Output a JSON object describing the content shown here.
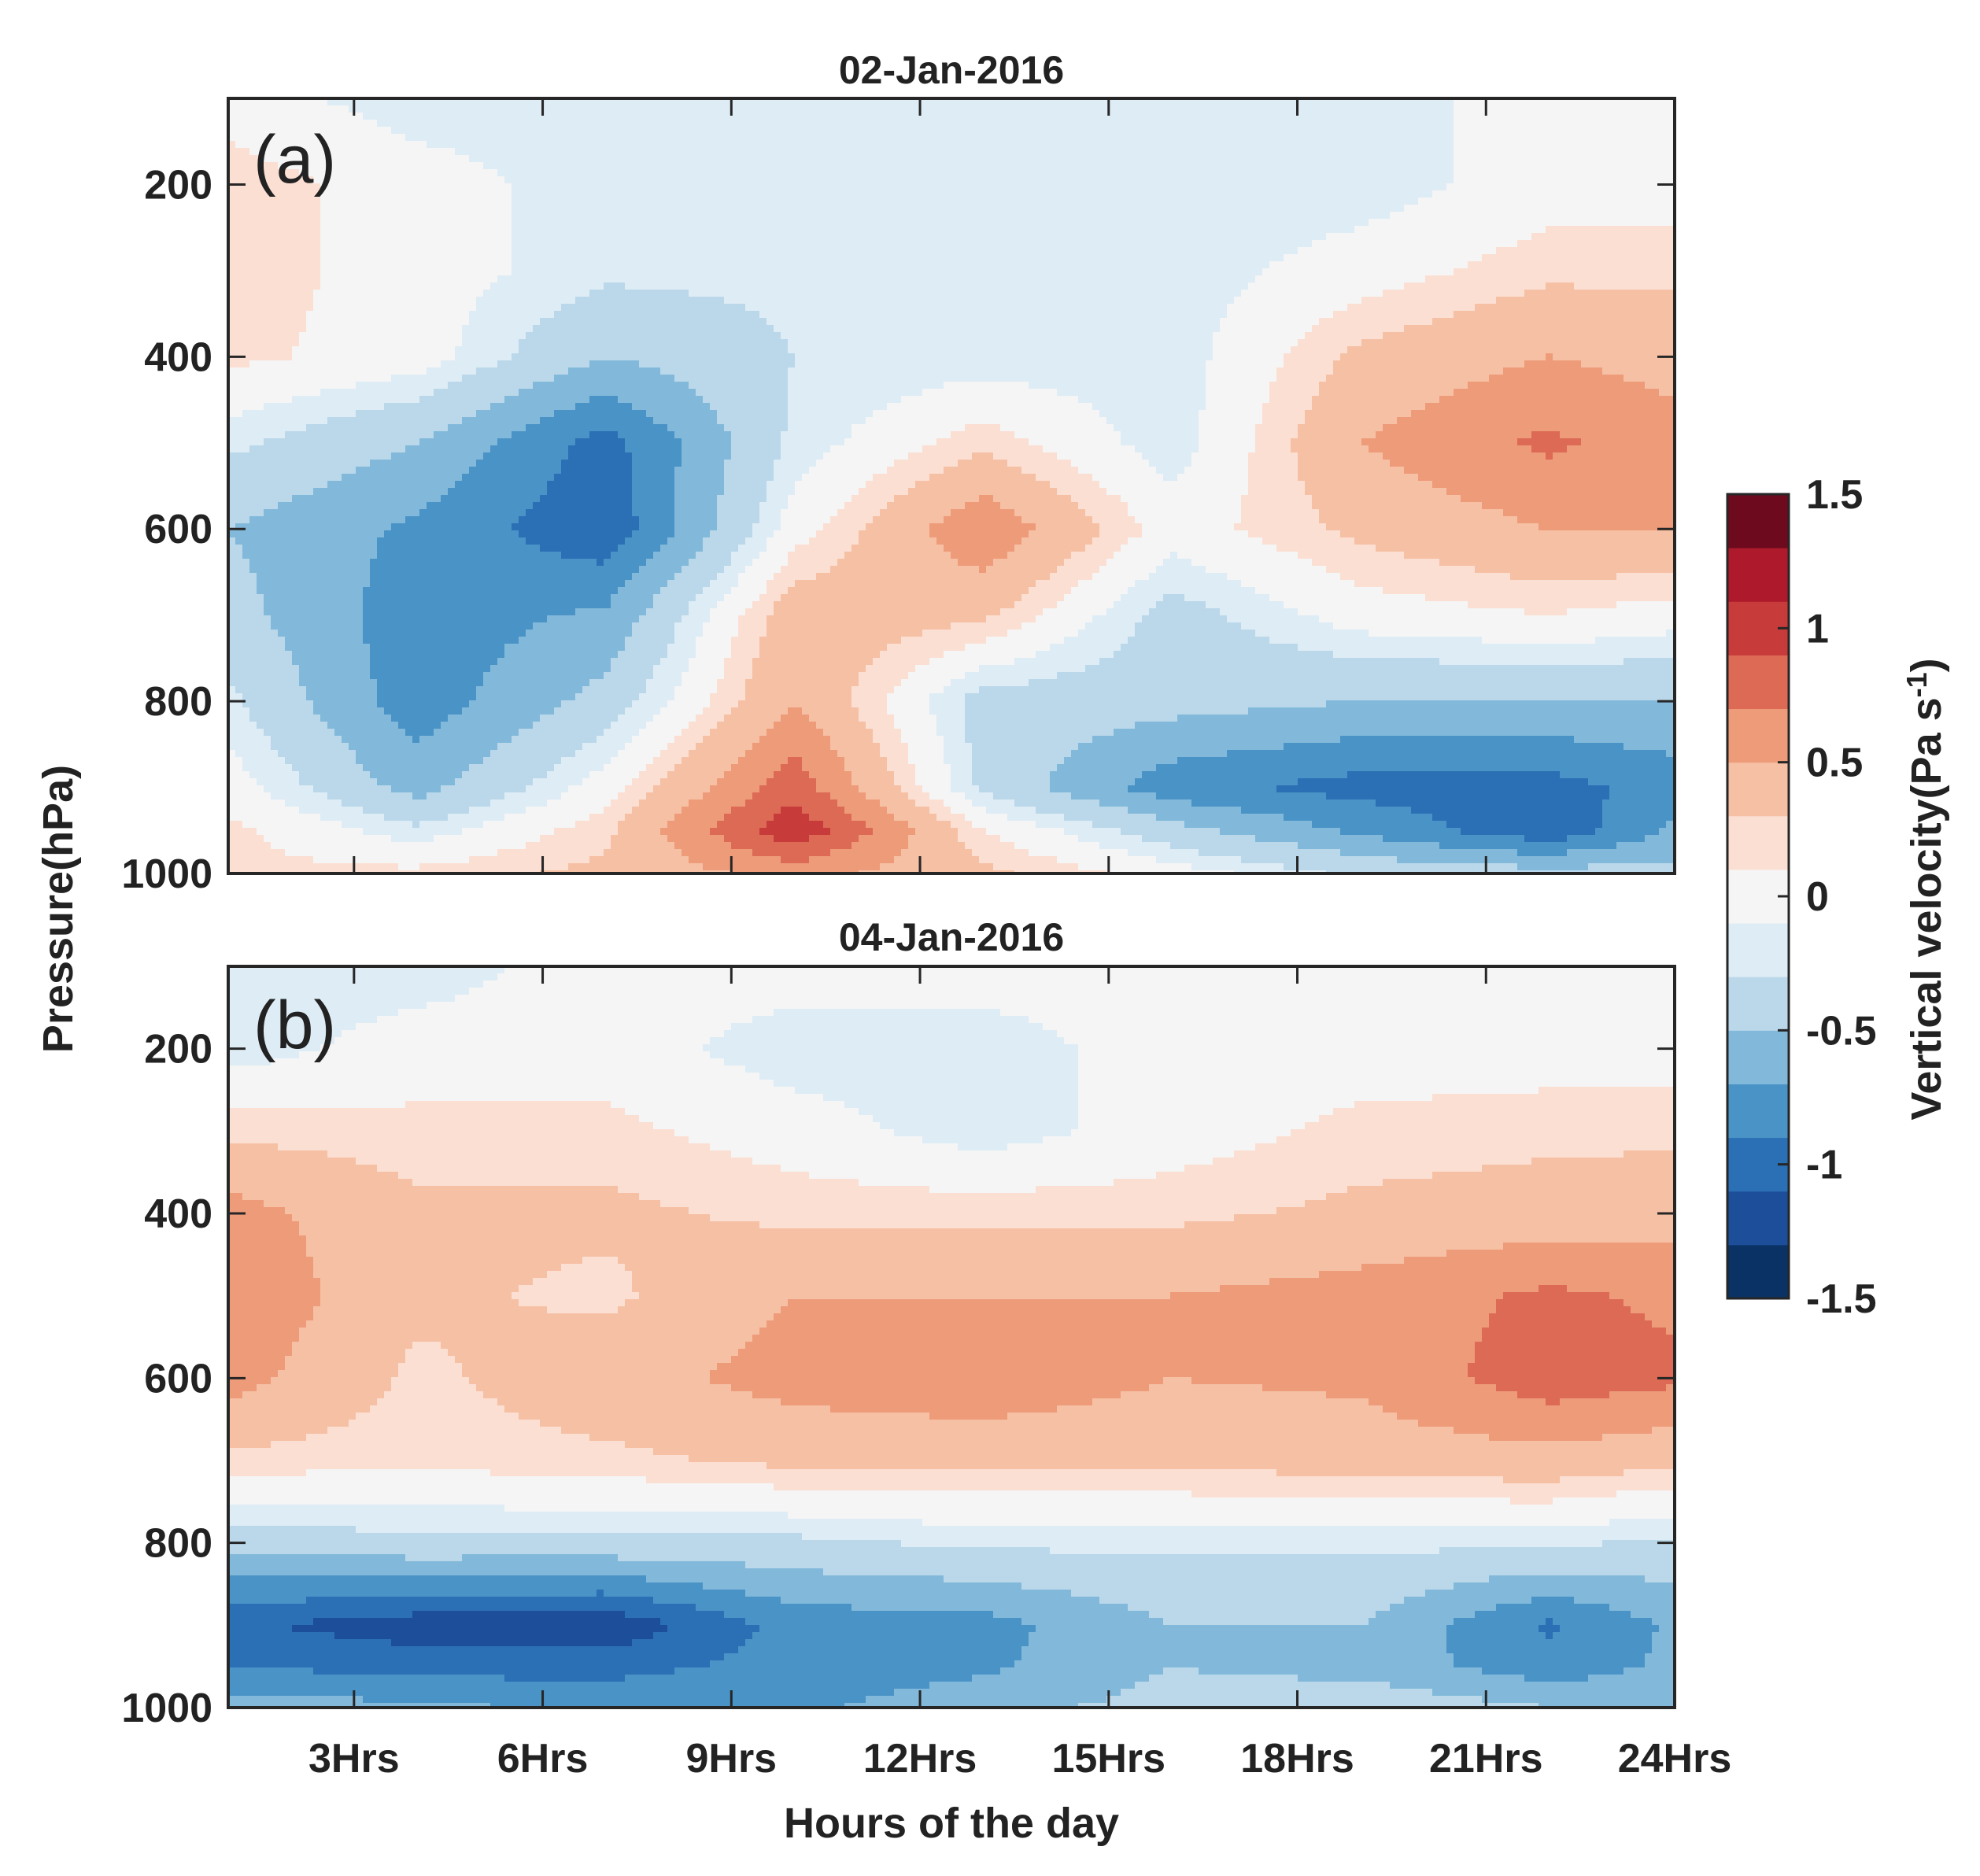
{
  "chart_data": {
    "type": "heatmap",
    "shared": {
      "ylabel": "Pressure(hPa)",
      "xlabel": "Hours of the day",
      "x_ticks": [
        3,
        6,
        9,
        12,
        15,
        18,
        21,
        24
      ],
      "x_tick_labels": [
        "3Hrs",
        "6Hrs",
        "9Hrs",
        "12Hrs",
        "15Hrs",
        "18Hrs",
        "21Hrs",
        "24Hrs"
      ],
      "xlim": [
        1,
        24
      ],
      "y_ticks": [
        200,
        400,
        600,
        800,
        1000
      ],
      "y_tick_labels": [
        "200",
        "400",
        "600",
        "800",
        "1000"
      ],
      "ylim": [
        100,
        1000
      ],
      "y_reversed": true,
      "colorbar": {
        "label_main": "Vertical velocity(Pa s",
        "label_sup": "-1",
        "label_end": ")",
        "ticks": [
          1.5,
          1,
          0.5,
          0,
          -0.5,
          -1,
          -1.5
        ],
        "tick_labels": [
          "1.5",
          "1",
          "0.5",
          "0",
          "-0.5",
          "-1",
          "-1.5"
        ],
        "levels": [
          -1.5,
          -1.25,
          -1.0,
          -0.75,
          -0.5,
          -0.25,
          -0.1,
          0.1,
          0.25,
          0.5,
          0.75,
          1.0,
          1.25,
          1.5
        ],
        "colors": [
          "#0a3264",
          "#1d4e9a",
          "#2b6fb5",
          "#4a93c6",
          "#82b9da",
          "#bad8ea",
          "#deecf5",
          "#f5f5f5",
          "#fbdfd3",
          "#f6c0a4",
          "#ee9b7a",
          "#dc6a55",
          "#c73b3b",
          "#ae1a2c",
          "#6e0a1e"
        ]
      },
      "x_hours": [
        1,
        4,
        7,
        10,
        13,
        16,
        19,
        22,
        24
      ],
      "pressure_levels": [
        100,
        200,
        300,
        400,
        500,
        600,
        700,
        800,
        900,
        950,
        1000
      ]
    },
    "panels": [
      {
        "panel_label": "(a)",
        "title": "02-Jan-2016",
        "values": [
          [
            0.0,
            -0.2,
            -0.2,
            -0.2,
            -0.2,
            -0.2,
            -0.2,
            0.0,
            0.0
          ],
          [
            0.2,
            0.0,
            -0.2,
            -0.2,
            -0.2,
            -0.2,
            -0.2,
            0.0,
            0.0
          ],
          [
            0.2,
            0.0,
            -0.2,
            -0.2,
            -0.2,
            -0.2,
            0.0,
            0.2,
            0.2
          ],
          [
            0.15,
            0.0,
            -0.5,
            -0.25,
            -0.2,
            -0.2,
            0.3,
            0.5,
            0.4
          ],
          [
            -0.2,
            -0.5,
            -1.1,
            -0.2,
            0.2,
            -0.2,
            0.5,
            0.8,
            0.6
          ],
          [
            -0.5,
            -0.8,
            -1.2,
            0.0,
            0.7,
            0.0,
            0.3,
            0.5,
            0.5
          ],
          [
            -0.4,
            -0.9,
            -0.7,
            0.4,
            0.3,
            -0.35,
            0.0,
            0.1,
            0.0
          ],
          [
            -0.2,
            -0.9,
            -0.4,
            0.5,
            -0.35,
            -0.4,
            -0.5,
            -0.5,
            -0.5
          ],
          [
            0.0,
            -0.6,
            0.0,
            0.9,
            -0.3,
            -0.9,
            -1.1,
            -1.1,
            -0.9
          ],
          [
            0.15,
            -0.2,
            0.2,
            1.2,
            0.1,
            -0.4,
            -0.8,
            -1.2,
            -0.7
          ],
          [
            0.15,
            0.15,
            0.3,
            0.6,
            0.3,
            0.0,
            -0.3,
            -0.4,
            -0.4
          ]
        ]
      },
      {
        "panel_label": "(b)",
        "title": "04-Jan-2016",
        "values": [
          [
            -0.2,
            -0.2,
            0.0,
            0.0,
            0.0,
            0.0,
            0.0,
            0.0,
            0.0
          ],
          [
            -0.2,
            0.0,
            0.0,
            -0.2,
            -0.2,
            0.0,
            0.0,
            0.0,
            0.0
          ],
          [
            0.2,
            0.15,
            0.15,
            0.0,
            -0.2,
            0.0,
            0.15,
            0.2,
            0.2
          ],
          [
            0.6,
            0.3,
            0.3,
            0.2,
            0.2,
            0.2,
            0.3,
            0.35,
            0.4
          ],
          [
            0.7,
            0.3,
            0.2,
            0.5,
            0.5,
            0.5,
            0.6,
            0.8,
            0.7
          ],
          [
            0.6,
            0.2,
            0.4,
            0.6,
            0.7,
            0.5,
            0.55,
            0.9,
            0.8
          ],
          [
            0.2,
            0.15,
            0.2,
            0.3,
            0.3,
            0.3,
            0.35,
            0.4,
            0.3
          ],
          [
            -0.4,
            -0.3,
            -0.3,
            -0.3,
            -0.2,
            -0.2,
            -0.2,
            -0.2,
            -0.3
          ],
          [
            -1.2,
            -1.4,
            -1.45,
            -0.9,
            -0.85,
            -0.5,
            -0.5,
            -1.05,
            -0.7
          ],
          [
            -1.0,
            -1.1,
            -1.1,
            -0.9,
            -0.8,
            -0.5,
            -0.6,
            -0.9,
            -0.7
          ],
          [
            -0.6,
            -0.7,
            -0.8,
            -0.8,
            -0.6,
            -0.4,
            -0.3,
            -0.5,
            -0.55
          ]
        ]
      }
    ]
  }
}
